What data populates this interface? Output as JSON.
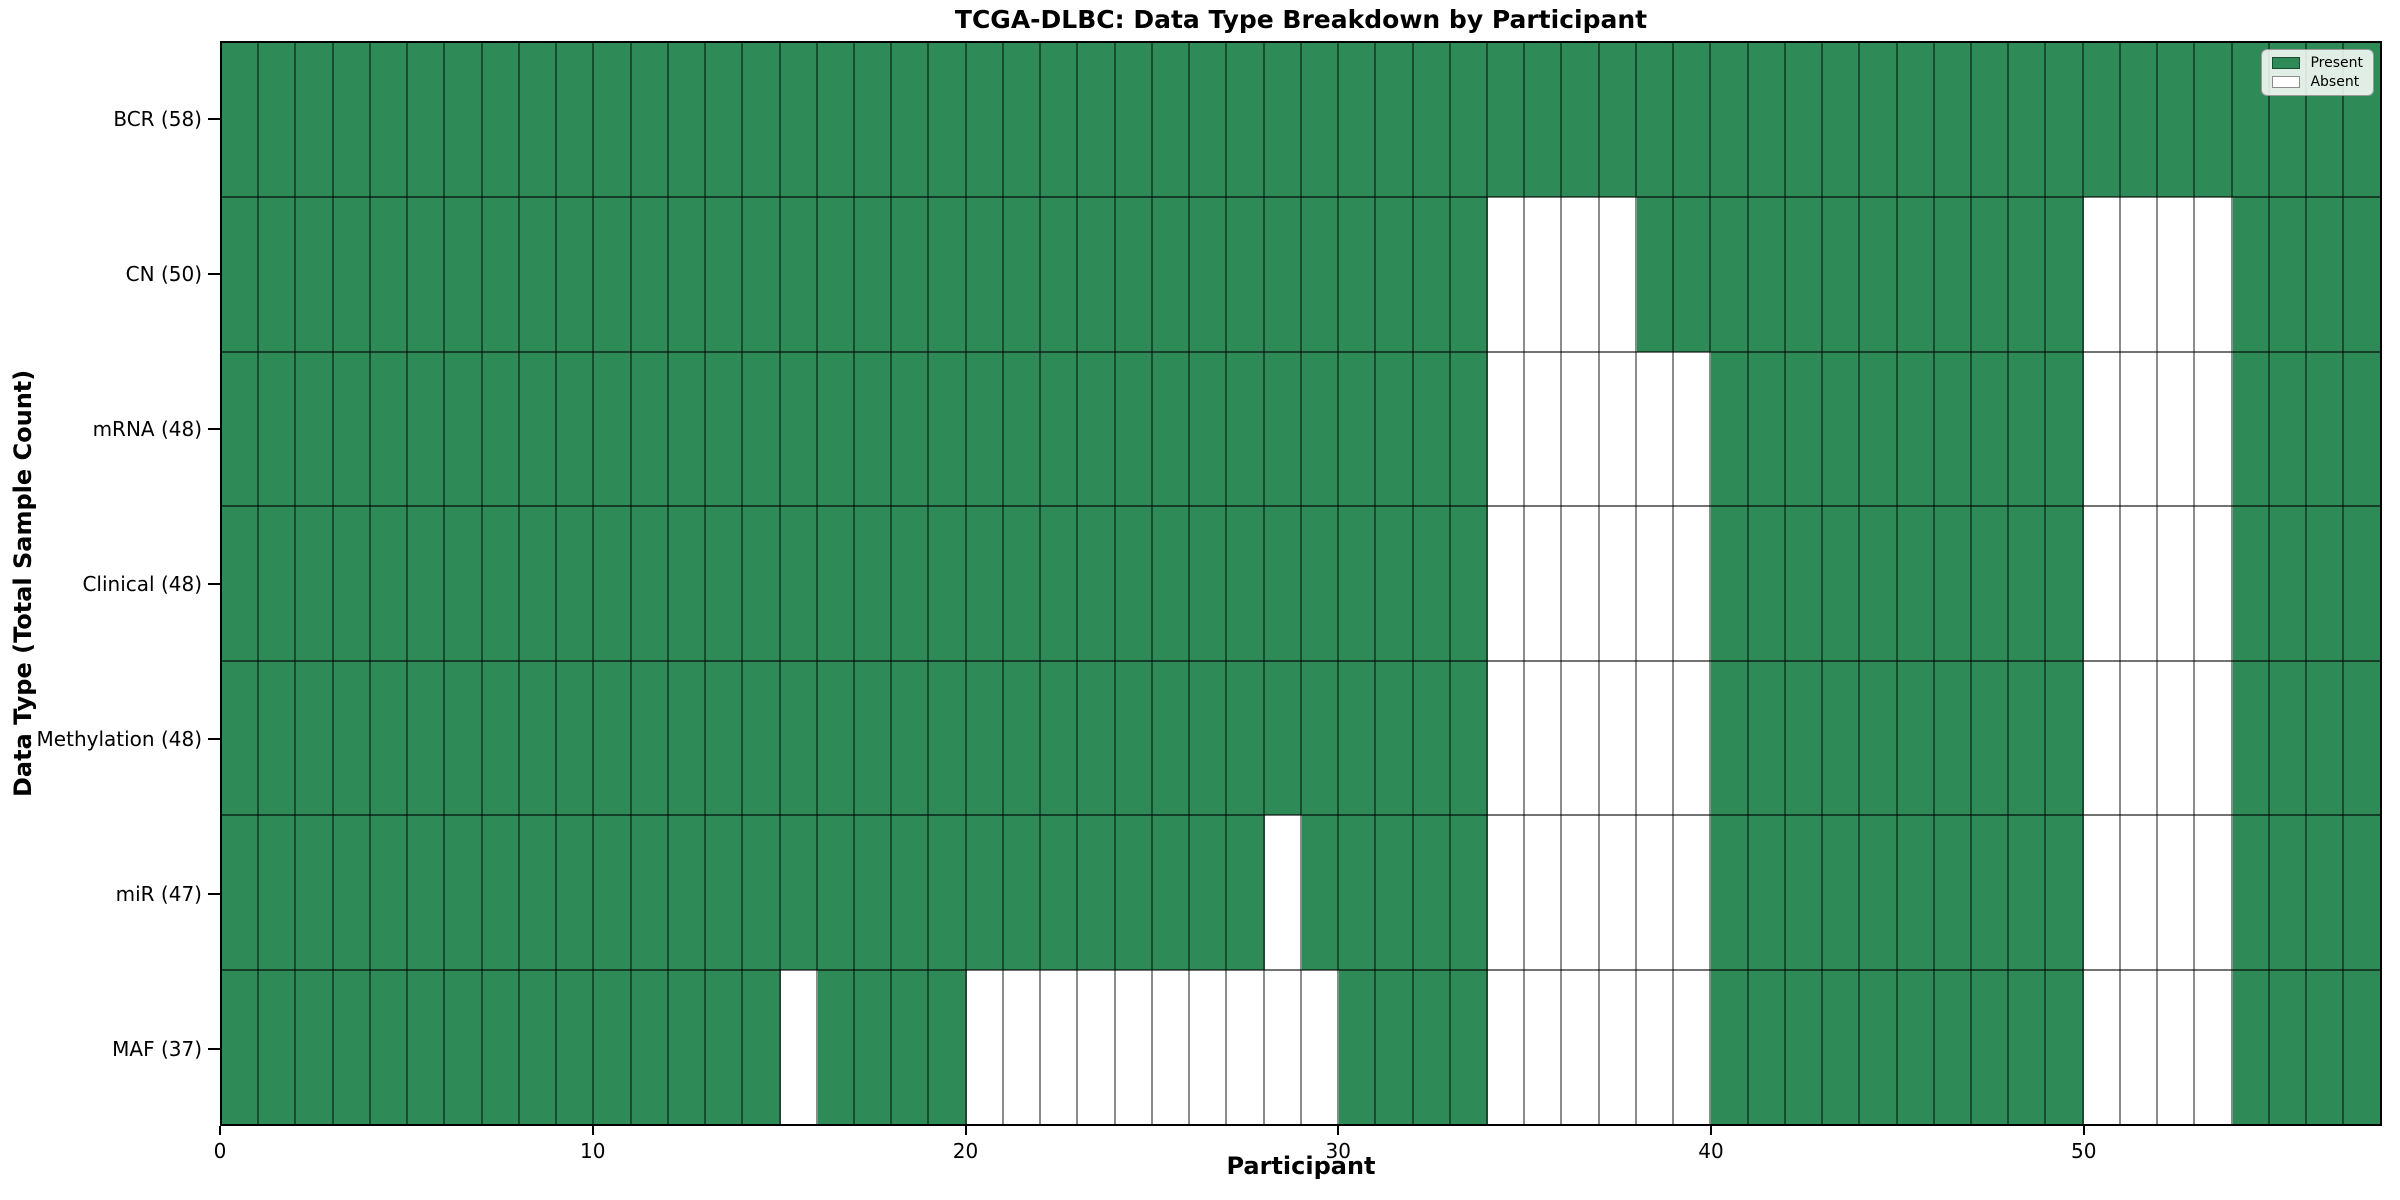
{
  "chart_data": {
    "type": "heatmap",
    "title": "TCGA-DLBC: Data Type Breakdown by Participant",
    "xlabel": "Participant",
    "ylabel": "Data Type (Total Sample Count)",
    "n_participants": 58,
    "xlim": [
      0,
      58
    ],
    "x_ticks": [
      0,
      10,
      20,
      30,
      40,
      50
    ],
    "grid": false,
    "legend_position": "upper right",
    "rows": [
      {
        "label": "BCR (58)",
        "data_type": "BCR",
        "total": 58,
        "absent_participants": []
      },
      {
        "label": "CN (50)",
        "data_type": "CN",
        "total": 50,
        "absent_participants": [
          34,
          35,
          36,
          37,
          50,
          51,
          52,
          53
        ]
      },
      {
        "label": "mRNA (48)",
        "data_type": "mRNA",
        "total": 48,
        "absent_participants": [
          34,
          35,
          36,
          37,
          38,
          39,
          50,
          51,
          52,
          53
        ]
      },
      {
        "label": "Clinical (48)",
        "data_type": "Clinical",
        "total": 48,
        "absent_participants": [
          34,
          35,
          36,
          37,
          38,
          39,
          50,
          51,
          52,
          53
        ]
      },
      {
        "label": "Methylation (48)",
        "data_type": "Methylation",
        "total": 48,
        "absent_participants": [
          34,
          35,
          36,
          37,
          38,
          39,
          50,
          51,
          52,
          53
        ]
      },
      {
        "label": "miR (47)",
        "data_type": "miR",
        "total": 47,
        "absent_participants": [
          28,
          34,
          35,
          36,
          37,
          38,
          39,
          50,
          51,
          52,
          53
        ]
      },
      {
        "label": "MAF (37)",
        "data_type": "MAF",
        "total": 37,
        "absent_participants": [
          15,
          20,
          21,
          22,
          23,
          24,
          25,
          26,
          27,
          28,
          29,
          34,
          35,
          36,
          37,
          38,
          39,
          50,
          51,
          52,
          53
        ]
      }
    ],
    "legend": [
      {
        "label": "Present",
        "color": "#2e8b57"
      },
      {
        "label": "Absent",
        "color": "#ffffff"
      }
    ],
    "colors": {
      "present": "#2e8b57",
      "absent": "#ffffff",
      "cell_edge": "rgba(0,0,0,0.45)",
      "row_line": "rgba(0,0,0,0.55)",
      "plot_border": "#000000",
      "background": "#ffffff"
    }
  }
}
